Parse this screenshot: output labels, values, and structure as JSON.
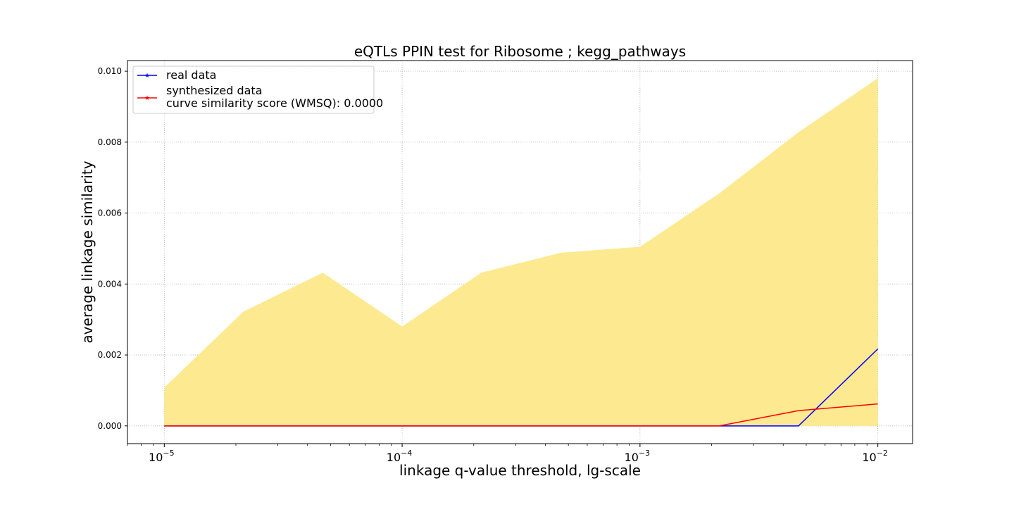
{
  "chart_data": {
    "type": "line",
    "title": "eQTLs PPIN test for Ribosome ; kegg_pathways",
    "xlabel": "linkage q-value threshold, lg-scale",
    "ylabel": "average linkage similarity",
    "x_scale": "log",
    "x": [
      1e-05,
      2.15e-05,
      4.64e-05,
      0.0001,
      0.000215,
      0.000464,
      0.001,
      0.00215,
      0.00464,
      0.01
    ],
    "xlim": [
      7e-06,
      0.014
    ],
    "ylim": [
      -0.0005,
      0.0103
    ],
    "x_ticks": [
      {
        "value": 1e-05,
        "base": "10",
        "exp": "−5"
      },
      {
        "value": 0.0001,
        "base": "10",
        "exp": "−4"
      },
      {
        "value": 0.001,
        "base": "10",
        "exp": "−3"
      },
      {
        "value": 0.01,
        "base": "10",
        "exp": "−2"
      }
    ],
    "y_ticks": [
      {
        "value": 0.0,
        "label": "0.000"
      },
      {
        "value": 0.002,
        "label": "0.002"
      },
      {
        "value": 0.004,
        "label": "0.004"
      },
      {
        "value": 0.006,
        "label": "0.006"
      },
      {
        "value": 0.008,
        "label": "0.008"
      },
      {
        "value": 0.01,
        "label": "0.010"
      }
    ],
    "grid": true,
    "legend_position": "top-left",
    "band": {
      "color": "#fde98f",
      "lower": [
        0,
        0,
        0,
        0,
        0,
        0,
        0,
        0,
        0,
        0
      ],
      "upper": [
        0.00108,
        0.00322,
        0.00432,
        0.0028,
        0.00432,
        0.00488,
        0.00505,
        0.00655,
        0.00828,
        0.0098
      ]
    },
    "series": [
      {
        "name": "real data",
        "color": "#0000ff",
        "values": [
          0,
          0,
          0,
          0,
          0,
          0,
          0,
          0,
          0,
          0.00217
        ]
      },
      {
        "name": "synthesized data",
        "color": "#ff0000",
        "values": [
          0,
          0,
          0,
          0,
          0,
          0,
          0,
          0,
          0.00043,
          0.00062
        ]
      }
    ],
    "legend_entries": [
      {
        "lines": [
          "real data"
        ],
        "color": "#0000ff"
      },
      {
        "lines": [
          "synthesized data",
          "curve similarity score (WMSQ): 0.0000"
        ],
        "color": "#ff0000"
      }
    ]
  }
}
